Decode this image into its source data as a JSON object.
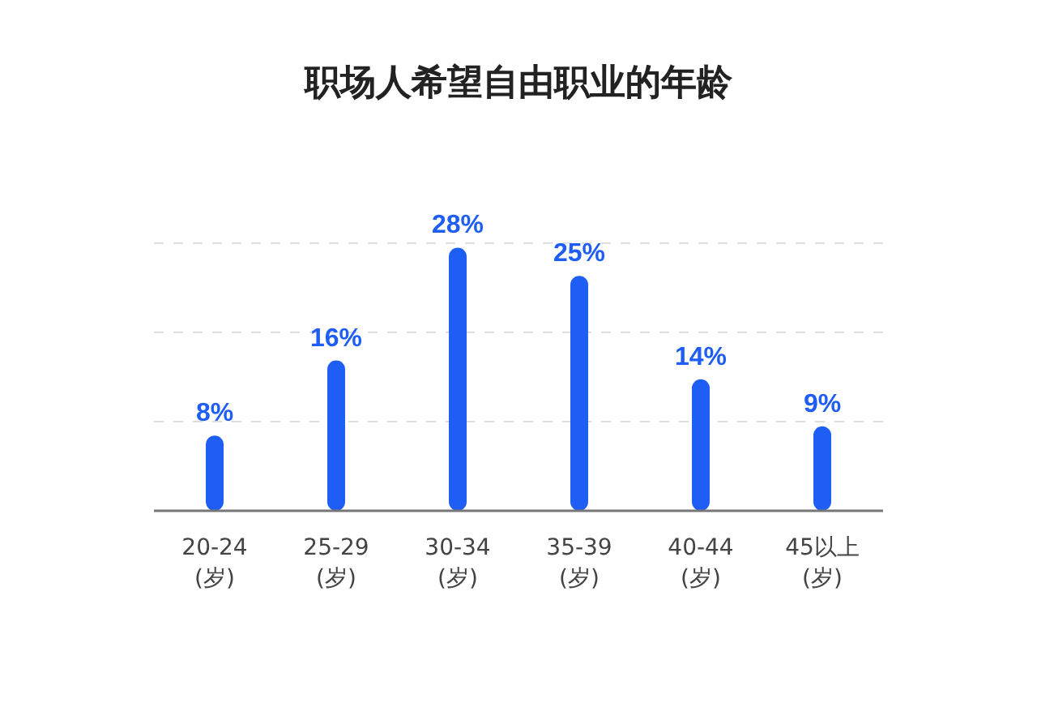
{
  "chart_data": {
    "type": "bar",
    "title": "职场人希望自由职业的年龄",
    "categories": [
      "20-24\n(岁)",
      "25-29\n(岁)",
      "30-34\n(岁)",
      "35-39\n(岁)",
      "40-44\n(岁)",
      "45以上\n(岁)"
    ],
    "values": [
      8,
      16,
      28,
      25,
      14,
      9
    ],
    "color": "#1f5ef5",
    "ref_lines": [
      {
        "axis": "y",
        "value": 9.5,
        "color": "#dddddd",
        "line_style": "dashed"
      },
      {
        "axis": "y",
        "value": 19,
        "color": "#dddddd",
        "line_style": "dashed"
      },
      {
        "axis": "y",
        "value": 28.5,
        "color": "#dddddd",
        "line_style": "dashed"
      }
    ],
    "value_labels": [
      "8%",
      "16%",
      "28%",
      "25%",
      "14%",
      "9%"
    ]
  }
}
